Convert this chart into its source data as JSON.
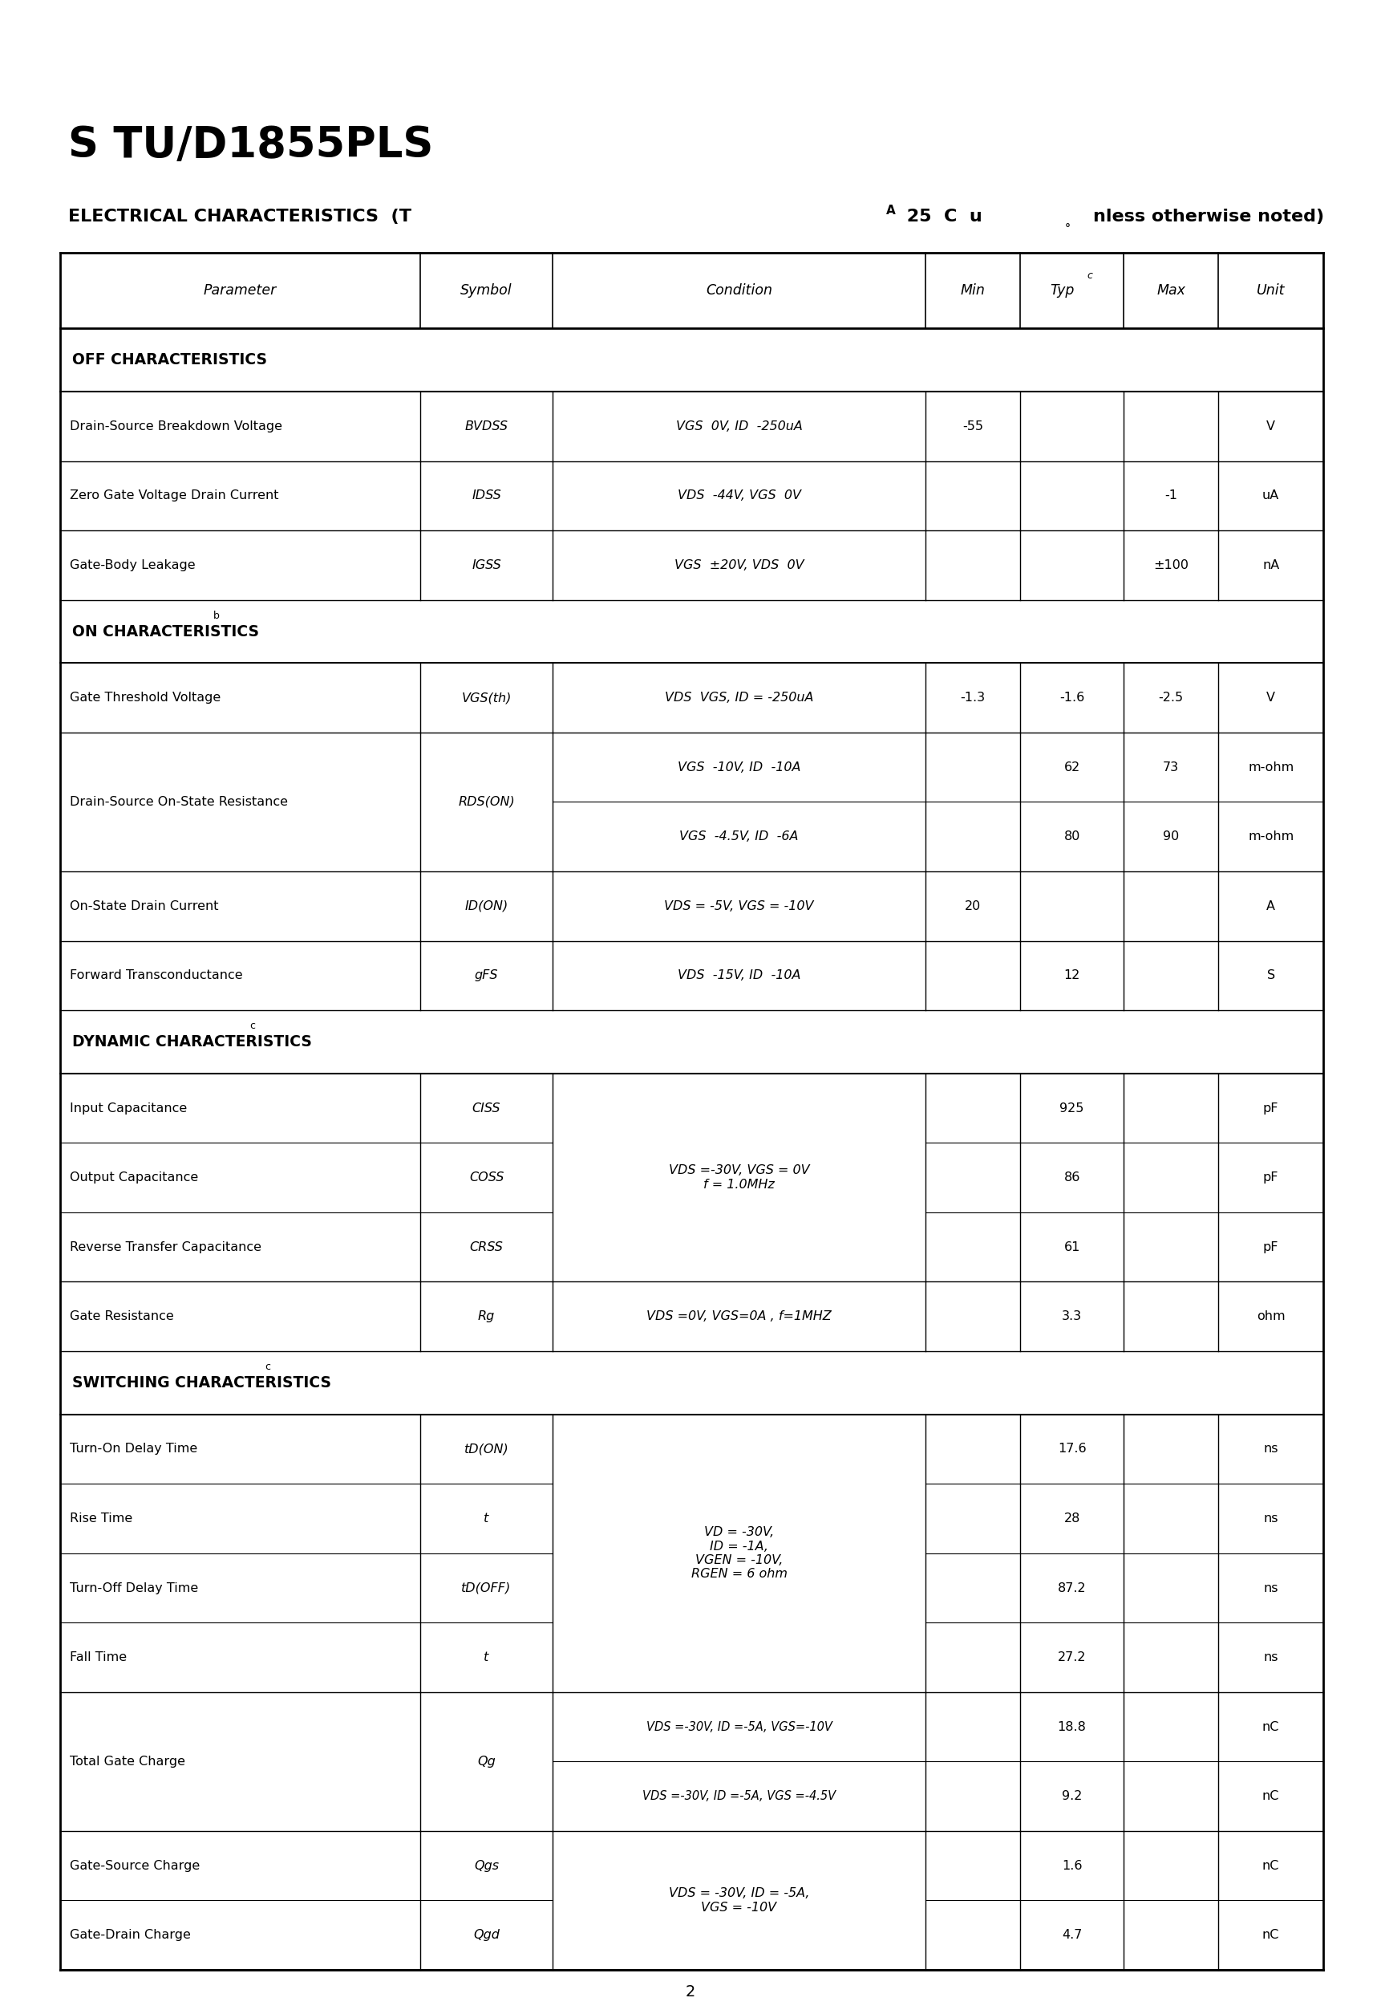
{
  "title": "S TU/D1855PLS",
  "subtitle_parts": [
    {
      "text": "ELECTRICAL CHARACTERISTICS  (T",
      "style": "bold"
    },
    {
      "text": "A",
      "style": "bold_small"
    },
    {
      "text": " 25  C  u",
      "style": "bold"
    },
    {
      "text": "nless otherwise noted)",
      "style": "bold_strike"
    }
  ],
  "page_number": "2",
  "rows": [
    {
      "type": "header"
    },
    {
      "type": "section",
      "text": "OFF CHARACTERISTICS"
    },
    {
      "type": "data",
      "param": "Drain-Source Breakdown Voltage",
      "symbol": "BVDSS",
      "condition": "VGS  0V, ID  -250uA",
      "min": "-55",
      "typ": "",
      "max": "",
      "unit": "V"
    },
    {
      "type": "data",
      "param": "Zero Gate Voltage Drain Current",
      "symbol": "IDSS",
      "condition": "VDS  -44V, VGS  0V",
      "min": "",
      "typ": "",
      "max": "-1",
      "unit": "uA"
    },
    {
      "type": "data",
      "param": "Gate-Body Leakage",
      "symbol": "IGSS",
      "condition": "VGS  ±20V, VDS  0V",
      "min": "",
      "typ": "",
      "max": "±100",
      "unit": "nA"
    },
    {
      "type": "section",
      "text": "ON CHARACTERISTICS",
      "superscript": "b"
    },
    {
      "type": "data",
      "param": "Gate Threshold Voltage",
      "symbol": "VGS(th)",
      "condition": "VDS  VGS, ID = -250uA",
      "min": "-1.3",
      "typ": "-1.6",
      "max": "-2.5",
      "unit": "V"
    },
    {
      "type": "data2",
      "param": "Drain-Source On-State Resistance",
      "symbol": "RDS(ON)",
      "condition1": "VGS  -10V, ID  -10A",
      "min1": "",
      "typ1": "62",
      "max1": "73",
      "unit1": "m-ohm",
      "condition2": "VGS  -4.5V, ID  -6A",
      "min2": "",
      "typ2": "80",
      "max2": "90",
      "unit2": "m-ohm"
    },
    {
      "type": "data",
      "param": "On-State Drain Current",
      "symbol": "ID(ON)",
      "condition": "VDS = -5V, VGS = -10V",
      "min": "20",
      "typ": "",
      "max": "",
      "unit": "A"
    },
    {
      "type": "data",
      "param": "Forward Transconductance",
      "symbol": "gFS",
      "condition": "VDS  -15V, ID  -10A",
      "min": "",
      "typ": "12",
      "max": "",
      "unit": "S"
    },
    {
      "type": "section",
      "text": "DYNAMIC CHARACTERISTICS",
      "superscript": "c"
    },
    {
      "type": "data3",
      "param1": "Input Capacitance",
      "symbol1": "CISS",
      "param2": "Output Capacitance",
      "symbol2": "COSS",
      "param3": "Reverse Transfer Capacitance",
      "symbol3": "CRSS",
      "condition": "VDS =-30V, VGS = 0V\nf = 1.0MHz",
      "typ1": "925",
      "unit1": "pF",
      "typ2": "86",
      "unit2": "pF",
      "typ3": "61",
      "unit3": "pF"
    },
    {
      "type": "data",
      "param": "Gate Resistance",
      "symbol": "Rg",
      "condition": "VDS =0V, VGS=0A , f=1MHZ",
      "min": "",
      "typ": "3.3",
      "max": "",
      "unit": "ohm"
    },
    {
      "type": "section",
      "text": "SWITCHING CHARACTERISTICS",
      "superscript": "c"
    },
    {
      "type": "data4",
      "param1": "Turn-On Delay Time",
      "symbol1": "tD(ON)",
      "param2": "Rise Time",
      "symbol2": "t",
      "param3": "Turn-Off Delay Time",
      "symbol3": "tD(OFF)",
      "param4": "Fall Time",
      "symbol4": "t",
      "condition": "VD = -30V,\nID = -1A,\nVGEN = -10V,\nRGEN = 6 ohm",
      "typ1": "17.6",
      "unit1": "ns",
      "typ2": "28",
      "unit2": "ns",
      "typ3": "87.2",
      "unit3": "ns",
      "typ4": "27.2",
      "unit4": "ns"
    },
    {
      "type": "data5",
      "param": "Total Gate Charge",
      "symbol": "Qg",
      "condition1": "VDS =-30V, ID =-5A, VGS=-10V",
      "typ1": "18.8",
      "unit1": "nC",
      "condition2": "VDS =-30V, ID =-5A, VGS =-4.5V",
      "typ2": "9.2",
      "unit2": "nC"
    },
    {
      "type": "data6",
      "param1": "Gate-Source Charge",
      "symbol1": "Qgs",
      "param2": "Gate-Drain Charge",
      "symbol2": "Qgd",
      "condition": "VDS = -30V, ID = -5A,\nVGS = -10V",
      "typ1": "1.6",
      "unit1": "nC",
      "typ2": "4.7",
      "unit2": "nC"
    }
  ]
}
